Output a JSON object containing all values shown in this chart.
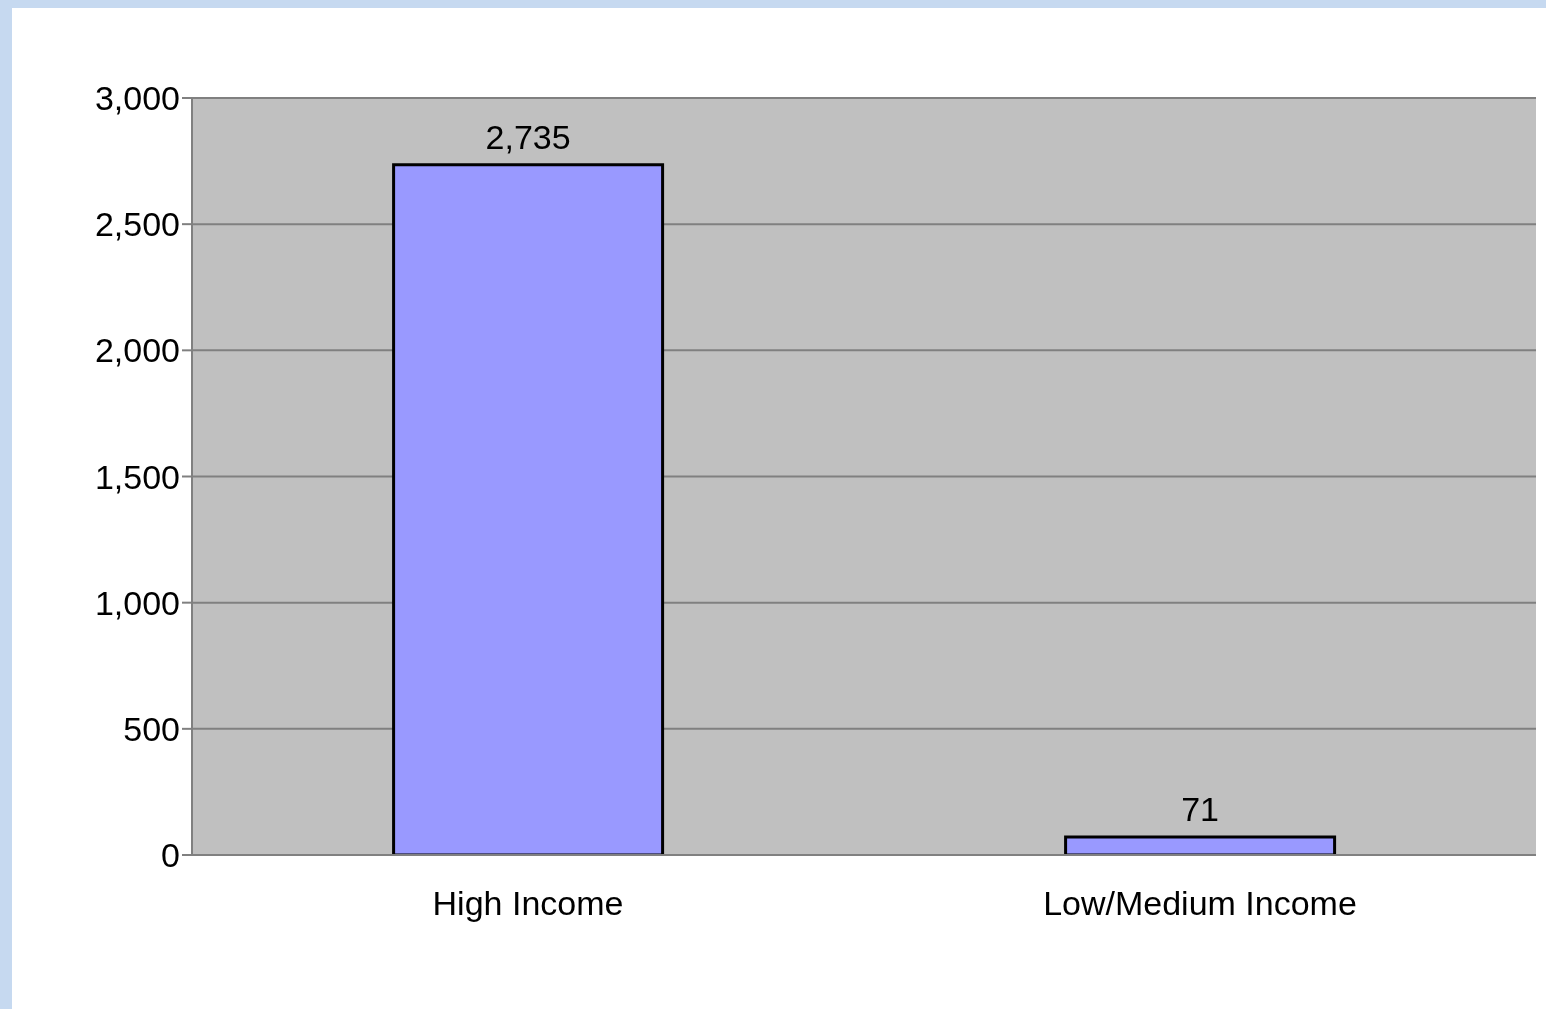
{
  "chart_data": {
    "type": "bar",
    "categories": [
      "High Income",
      "Low/Medium Income"
    ],
    "values": [
      2735,
      71
    ],
    "value_labels": [
      "2,735",
      "71"
    ],
    "color": "#9999ff",
    "ylim": [
      0,
      3000
    ],
    "yticks": [
      {
        "value": 0,
        "label": "0"
      },
      {
        "value": 500,
        "label": "500"
      },
      {
        "value": 1000,
        "label": "1,000"
      },
      {
        "value": 1500,
        "label": "1,500"
      },
      {
        "value": 2000,
        "label": "2,000"
      },
      {
        "value": 2500,
        "label": "2,500"
      },
      {
        "value": 3000,
        "label": "3,000"
      }
    ],
    "grid": "y"
  }
}
